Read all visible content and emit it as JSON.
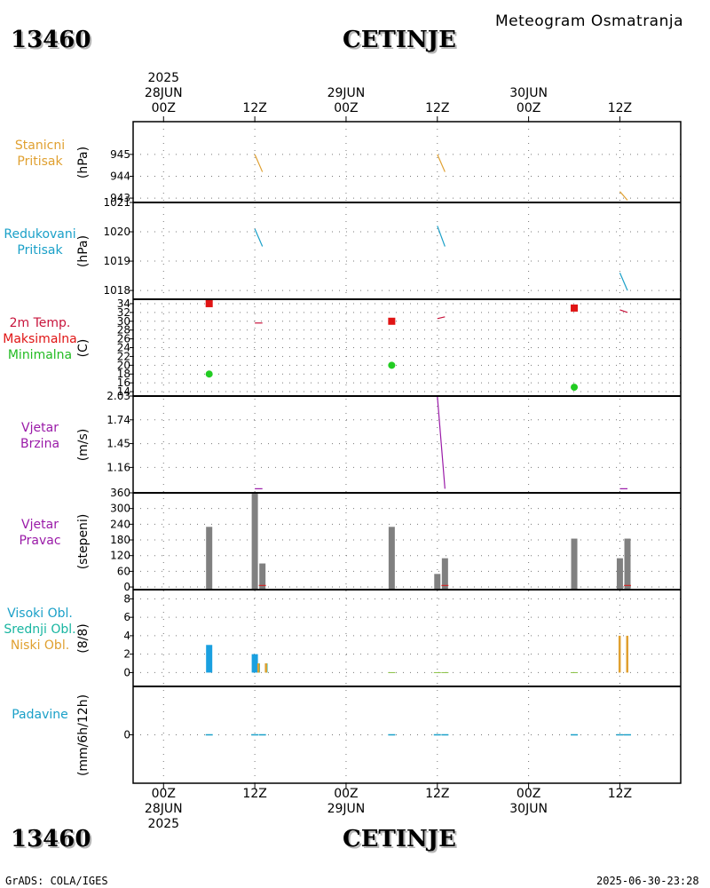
{
  "header": {
    "station_id": "13460",
    "station_name": "CETINJE",
    "subtitle": "Meteogram Osmatranja"
  },
  "footer": {
    "left": "GrADS: COLA/IGES",
    "right": "2025-06-30-23:28"
  },
  "top_time_labels": [
    {
      "lines": [
        "2025",
        "28JUN",
        "00Z"
      ]
    },
    {
      "lines": [
        "12Z"
      ]
    },
    {
      "lines": [
        "29JUN",
        "00Z"
      ]
    },
    {
      "lines": [
        "12Z"
      ]
    },
    {
      "lines": [
        "30JUN",
        "00Z"
      ]
    },
    {
      "lines": [
        "12Z"
      ]
    }
  ],
  "bottom_time_labels": [
    {
      "lines": [
        "00Z",
        "28JUN",
        "2025"
      ]
    },
    {
      "lines": [
        "12Z"
      ]
    },
    {
      "lines": [
        "00Z",
        "29JUN"
      ]
    },
    {
      "lines": [
        "12Z"
      ]
    },
    {
      "lines": [
        "00Z",
        "30JUN"
      ]
    },
    {
      "lines": [
        "12Z"
      ]
    }
  ],
  "panels": [
    {
      "labels": [
        {
          "text": "Stanicni",
          "color": "#e0a030"
        },
        {
          "text": "Pritisak",
          "color": "#e0a030"
        }
      ],
      "unit": "(hPa)"
    },
    {
      "labels": [
        {
          "text": "Redukovani",
          "color": "#1aa0c8"
        },
        {
          "text": "Pritisak",
          "color": "#1aa0c8"
        }
      ],
      "unit": "(hPa)"
    },
    {
      "labels": [
        {
          "text": "2m Temp.",
          "color": "#c8143c"
        },
        {
          "text": "Maksimalna",
          "color": "#e01414"
        },
        {
          "text": "Minimalna",
          "color": "#22bb22"
        }
      ],
      "unit": "(C)"
    },
    {
      "labels": [
        {
          "text": "Vjetar",
          "color": "#9a1aa8"
        },
        {
          "text": "Brzina",
          "color": "#9a1aa8"
        }
      ],
      "unit": "(m/s)"
    },
    {
      "labels": [
        {
          "text": "Vjetar",
          "color": "#9a1aa8"
        },
        {
          "text": "Pravac",
          "color": "#9a1aa8"
        }
      ],
      "unit": "(stepeni)"
    },
    {
      "labels": [
        {
          "text": "Visoki Obl.",
          "color": "#1aa0c8"
        },
        {
          "text": "Srednji Obl.",
          "color": "#17b5a0"
        },
        {
          "text": "Niski Obl.",
          "color": "#e0a030"
        }
      ],
      "unit": "(8/8)"
    },
    {
      "labels": [
        {
          "text": "Padavine",
          "color": "#1aa0c8"
        }
      ],
      "unit": "(mm/6h/12h)"
    }
  ],
  "chart_data": {
    "type": "meteogram",
    "x_unit": "hours since 2025-06-28 00Z",
    "x_range": [
      -4,
      68
    ],
    "x_ticks": [
      0,
      12,
      24,
      36,
      48,
      60
    ],
    "colors": {
      "station_pressure": "#e0a030",
      "reduced_pressure": "#1aa0c8",
      "tmax": "#e01414",
      "tmin": "#22cc22",
      "temp_trace": "#c8143c",
      "wind_speed": "#9a1aa8",
      "wind_dir": "#808080",
      "wind_dir_small": "#e01414",
      "cloud_high": "#1aa0e0",
      "cloud_mid": "#17b5a0",
      "cloud_low": "#e0a030",
      "precip": "#1aa0c8"
    },
    "station_pressure": {
      "ylim": [
        942.8,
        946.5
      ],
      "ticks": [
        943,
        944,
        945
      ],
      "segments": [
        [
          [
            12,
            945.0
          ],
          [
            13,
            944.2
          ]
        ],
        [
          [
            36,
            945.0
          ],
          [
            37,
            944.2
          ]
        ],
        [
          [
            60,
            943.3
          ],
          [
            61,
            942.9
          ]
        ]
      ]
    },
    "reduced_pressure": {
      "ylim": [
        1017.7,
        1021.0
      ],
      "ticks": [
        1018,
        1019,
        1020,
        1021
      ],
      "segments": [
        [
          [
            12,
            1020.1
          ],
          [
            13,
            1019.5
          ]
        ],
        [
          [
            36,
            1020.2
          ],
          [
            37,
            1019.5
          ]
        ],
        [
          [
            60,
            1018.6
          ],
          [
            61,
            1018.0
          ]
        ]
      ]
    },
    "temperature": {
      "ylim": [
        13,
        35
      ],
      "ticks": [
        14,
        16,
        18,
        20,
        22,
        24,
        26,
        28,
        30,
        32,
        34
      ],
      "max": [
        [
          6,
          34
        ],
        [
          30,
          30
        ],
        [
          54,
          33
        ]
      ],
      "min": [
        [
          6,
          18
        ],
        [
          30,
          20
        ],
        [
          54,
          15
        ]
      ],
      "traces": [
        [
          [
            12,
            29.6
          ],
          [
            13,
            29.6
          ]
        ],
        [
          [
            36,
            30.6
          ],
          [
            37,
            31.0
          ]
        ],
        [
          [
            60,
            32.6
          ],
          [
            61,
            32.0
          ]
        ]
      ]
    },
    "wind_speed": {
      "ylim": [
        0.85,
        2.03
      ],
      "ticks": [
        1.16,
        1.45,
        1.74,
        2.03
      ],
      "segments": [
        [
          [
            12,
            0.9
          ],
          [
            13,
            0.9
          ]
        ],
        [
          [
            36,
            2.03
          ],
          [
            37,
            0.9
          ]
        ],
        [
          [
            60,
            0.9
          ],
          [
            61,
            0.9
          ]
        ]
      ]
    },
    "wind_direction": {
      "ylim": [
        -10,
        360
      ],
      "ticks": [
        0,
        60,
        120,
        180,
        240,
        300,
        360
      ],
      "bars": [
        [
          6,
          230
        ],
        [
          12,
          360
        ],
        [
          13,
          90
        ],
        [
          30,
          230
        ],
        [
          36,
          50
        ],
        [
          37,
          110
        ],
        [
          54,
          185
        ],
        [
          60,
          110
        ],
        [
          61,
          185
        ]
      ],
      "small_marks": [
        [
          13,
          6
        ],
        [
          37,
          6
        ],
        [
          61,
          6
        ]
      ]
    },
    "clouds": {
      "ylim": [
        -1.5,
        9
      ],
      "ticks": [
        0,
        2,
        4,
        6,
        8
      ],
      "high": [
        [
          6,
          3
        ],
        [
          12,
          2
        ]
      ],
      "mid": [
        [
          12.5,
          1
        ],
        [
          13.5,
          1
        ]
      ],
      "low": [
        [
          12.5,
          1
        ],
        [
          13.5,
          1
        ],
        [
          60,
          4
        ],
        [
          61,
          4
        ]
      ],
      "zero_marks": [
        30,
        36,
        37,
        54
      ]
    },
    "precipitation": {
      "ylim": [
        -5,
        5
      ],
      "ticks": [
        0
      ],
      "zero_marks": [
        6,
        12,
        13,
        30,
        36,
        37,
        54,
        60,
        61
      ]
    }
  }
}
